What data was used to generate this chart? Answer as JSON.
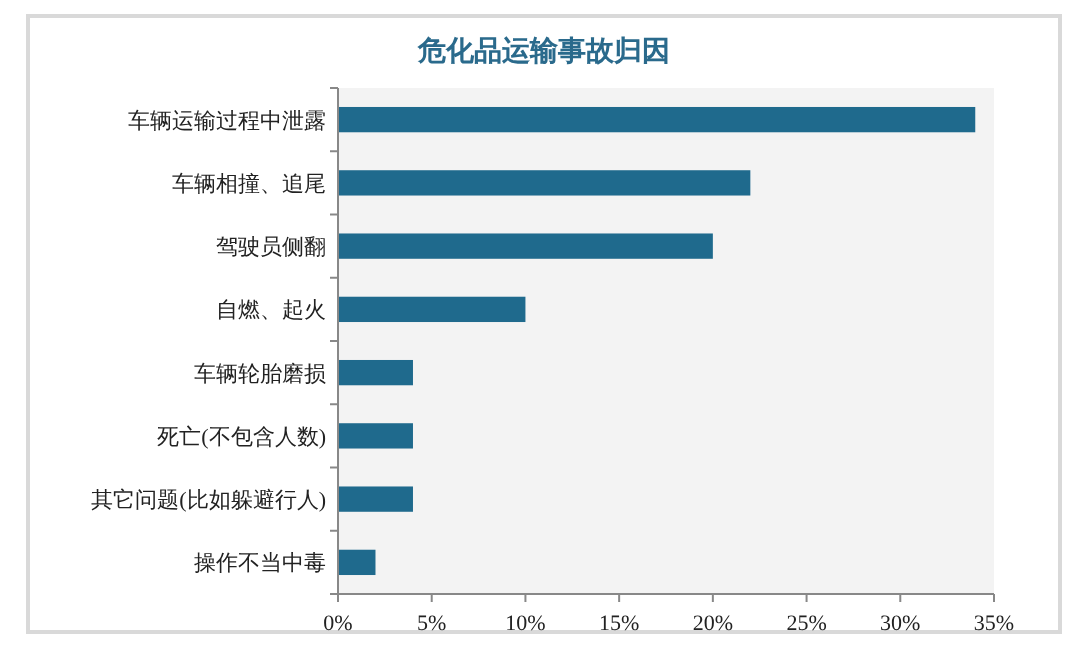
{
  "chart_data": {
    "type": "bar",
    "orientation": "horizontal",
    "title": "危化品运输事故归因",
    "categories": [
      "车辆运输过程中泄露",
      "车辆相撞、追尾",
      "驾驶员侧翻",
      "自燃、起火",
      "车辆轮胎磨损",
      "死亡(不包含人数)",
      "其它问题(比如躲避行人)",
      "操作不当中毒"
    ],
    "values": [
      34,
      22,
      20,
      10,
      4,
      4,
      4,
      2
    ],
    "color": "#1f6a8d",
    "xlim": [
      0,
      35
    ],
    "xticks": [
      {
        "value": 0,
        "label": "0%"
      },
      {
        "value": 5,
        "label": "5%"
      },
      {
        "value": 10,
        "label": "10%"
      },
      {
        "value": 15,
        "label": "15%"
      },
      {
        "value": 20,
        "label": "20%"
      },
      {
        "value": 25,
        "label": "25%"
      },
      {
        "value": 30,
        "label": "30%"
      },
      {
        "value": 35,
        "label": "35%"
      }
    ]
  }
}
